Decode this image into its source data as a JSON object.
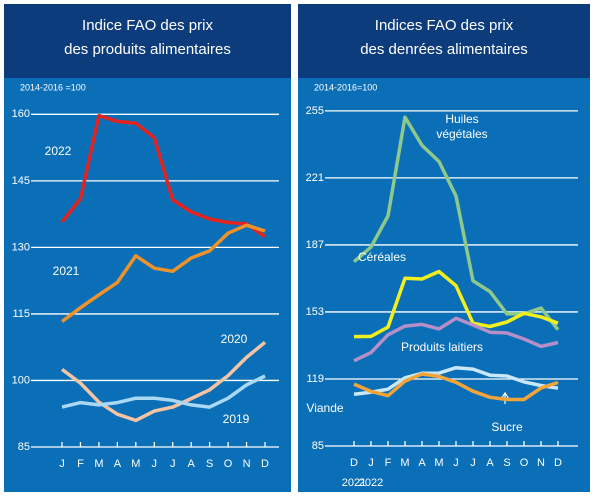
{
  "chart_data": [
    {
      "type": "line",
      "title": "Indice FAO des prix\ndes produits alimentaires",
      "units_label": "2014-2016 =100",
      "categories": [
        "J",
        "F",
        "M",
        "A",
        "M",
        "J",
        "J",
        "A",
        "S",
        "O",
        "N",
        "D"
      ],
      "ylim": [
        85,
        163
      ],
      "yticks": [
        85,
        100,
        115,
        130,
        145,
        160
      ],
      "grid": true,
      "series": [
        {
          "name": "2022",
          "color": "#e3231f",
          "values": [
            135.7,
            141,
            159.7,
            158.4,
            158,
            154.7,
            140.7,
            138,
            136.4,
            135.6,
            135.3,
            132.4
          ]
        },
        {
          "name": "2021",
          "color": "#f0922a",
          "values": [
            113.3,
            116.4,
            119.3,
            122.1,
            128.1,
            125.3,
            124.6,
            127.6,
            129.2,
            133.2,
            135,
            133.7
          ]
        },
        {
          "name": "2020",
          "color": "#f6c3a3",
          "values": [
            102.5,
            99.4,
            95.1,
            92.4,
            91,
            93.1,
            94,
            95.9,
            97.9,
            101.1,
            105.2,
            108.6
          ]
        },
        {
          "name": "2019",
          "color": "#a8d8f3",
          "values": [
            94,
            95,
            94.5,
            95,
            96,
            96,
            95.5,
            94.5,
            94,
            96,
            99,
            101
          ]
        }
      ]
    },
    {
      "type": "line",
      "title": "Indices FAO des prix\ndes denrées alimentaires",
      "units_label": "2014-2016=100",
      "categories": [
        "D",
        "J",
        "F",
        "M",
        "A",
        "M",
        "J",
        "J",
        "A",
        "S",
        "O",
        "N",
        "D"
      ],
      "year_labels": [
        "2021",
        "2022"
      ],
      "ylim": [
        85,
        260
      ],
      "yticks": [
        85,
        119,
        153,
        187,
        221,
        255
      ],
      "grid": true,
      "series": [
        {
          "name": "Huiles végétales",
          "color": "#8ec98b",
          "values": [
            178.5,
            185.9,
            201.7,
            251.8,
            237.5,
            229.3,
            211.8,
            168.8,
            163.3,
            152,
            152,
            155,
            144
          ]
        },
        {
          "name": "Céréales",
          "color": "#f3ef1c",
          "values": [
            140.5,
            140.6,
            145.3,
            170.1,
            169.7,
            173.5,
            166.3,
            147.3,
            145.6,
            147.9,
            152.3,
            150.5,
            147.3
          ]
        },
        {
          "name": "Produits laitiers",
          "color": "#b58fc8",
          "values": [
            128.2,
            132.4,
            141.4,
            145.8,
            146.7,
            144.4,
            149.8,
            146.4,
            142.7,
            142.3,
            139.3,
            135.5,
            137.5
          ]
        },
        {
          "name": "Viande",
          "color": "#c8e7f8",
          "values": [
            111.3,
            112.3,
            113.8,
            119.6,
            121.9,
            122,
            124.7,
            124,
            120.9,
            120.5,
            117.5,
            115.7,
            114.3
          ]
        },
        {
          "name": "Sucre",
          "color": "#f2a33a",
          "values": [
            116.4,
            112.7,
            110.5,
            117.9,
            121.5,
            120.3,
            117.3,
            112.8,
            109.7,
            108.6,
            108.6,
            114.4,
            117.2
          ]
        }
      ]
    }
  ]
}
